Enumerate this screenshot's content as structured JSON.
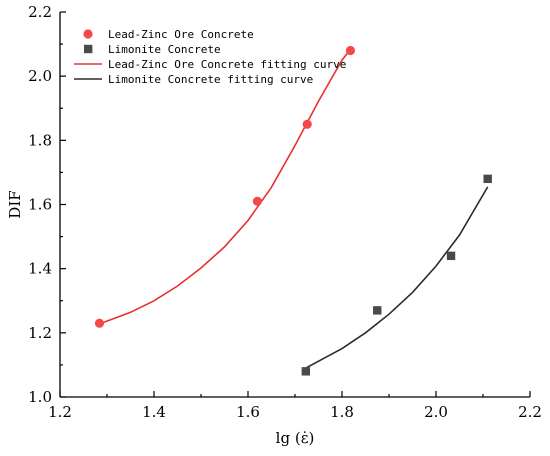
{
  "chart_data": {
    "type": "scatter",
    "xlabel": "lg (ε̇)",
    "ylabel": "DIF",
    "xlim": [
      1.2,
      2.2
    ],
    "ylim": [
      1.0,
      2.2
    ],
    "xticks": [
      1.2,
      1.4,
      1.6,
      1.8,
      2.0,
      2.2
    ],
    "yticks": [
      1.0,
      1.2,
      1.4,
      1.6,
      1.8,
      2.0,
      2.2
    ],
    "xtick_labels": [
      "1.2",
      "1.4",
      "1.6",
      "1.8",
      "2.0",
      "2.2"
    ],
    "ytick_labels": [
      "1.0",
      "1.2",
      "1.4",
      "1.6",
      "1.8",
      "2.0",
      "2.2"
    ],
    "grid": false,
    "legend_position": "top-left",
    "series": [
      {
        "name": "Lead-Zinc Ore Concrete",
        "kind": "points",
        "marker": "circle",
        "color": "#f24a4a",
        "x": [
          1.284,
          1.62,
          1.726,
          1.818
        ],
        "y": [
          1.23,
          1.61,
          1.85,
          2.08
        ]
      },
      {
        "name": "Limonite Concrete",
        "kind": "points",
        "marker": "square",
        "color": "#4a4a4a",
        "x": [
          1.723,
          1.875,
          2.032,
          2.11
        ],
        "y": [
          1.08,
          1.27,
          1.44,
          1.68
        ]
      },
      {
        "name": "Lead-Zinc Ore Concrete fitting curve",
        "kind": "line",
        "color": "#e8302e",
        "x": [
          1.284,
          1.35,
          1.4,
          1.45,
          1.5,
          1.55,
          1.6,
          1.65,
          1.7,
          1.75,
          1.8,
          1.818
        ],
        "y": [
          1.228,
          1.264,
          1.3,
          1.346,
          1.402,
          1.468,
          1.55,
          1.654,
          1.784,
          1.922,
          2.05,
          2.084
        ]
      },
      {
        "name": "Limonite Concrete fitting curve",
        "kind": "line",
        "color": "#2b2b2b",
        "x": [
          1.723,
          1.8,
          1.85,
          1.9,
          1.95,
          2.0,
          2.05,
          2.11
        ],
        "y": [
          1.09,
          1.151,
          1.2,
          1.258,
          1.326,
          1.408,
          1.505,
          1.655
        ]
      }
    ]
  }
}
